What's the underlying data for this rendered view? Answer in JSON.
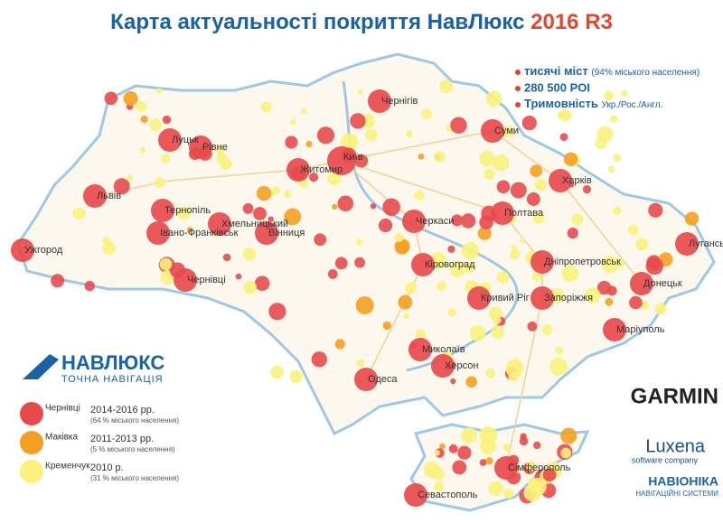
{
  "title": {
    "text": "Карта актуальності покриття НавЛюкс",
    "version": "2016",
    "release": "R3"
  },
  "highlights": [
    {
      "text": "тисячі міст",
      "note": "(94% міського населення)"
    },
    {
      "text": "280 500 POI"
    },
    {
      "text": "Тримовність",
      "note": "Укр./Рос./Англ."
    }
  ],
  "brand": {
    "name": "НАВЛЮКС",
    "tagline": "ТОЧНА НАВІГАЦІЯ"
  },
  "legend": [
    {
      "example": "Чернівці",
      "years": "2014-2016 рр.",
      "share": "(64 % міського населення)",
      "color": "#e84a4c"
    },
    {
      "example": "Маківка",
      "years": "2011-2013 рр.",
      "share": "(5 % міського населення)",
      "color": "#f6a020"
    },
    {
      "example": "Кременчук",
      "years": "2010 р.",
      "share": "(31 % міського населення)",
      "color": "#faf27c"
    }
  ],
  "partners": {
    "garmin": "GARMIN",
    "luxena": "Luxena",
    "luxena_sub": "software company",
    "navionika": "НАВІОНІКА",
    "navionika_sub": "НАВІГАЦІЙНІ СИСТЕМИ"
  },
  "cities": [
    "Луцьк",
    "Рівне",
    "Львів",
    "Тернопіль",
    "Хмельницький",
    "Житомир",
    "Київ",
    "Чернігів",
    "Суми",
    "Харків",
    "Полтава",
    "Черкаси",
    "Вінниця",
    "Івано-Франківськ",
    "Ужгород",
    "Чернівці",
    "Кіровоград",
    "Дніпропетровськ",
    "Донецьк",
    "Луганськ",
    "Запоріжжя",
    "Кривий Ріг",
    "Миколаїв",
    "Одеса",
    "Херсон",
    "Маріуполь",
    "Сімферополь",
    "Севастополь"
  ]
}
